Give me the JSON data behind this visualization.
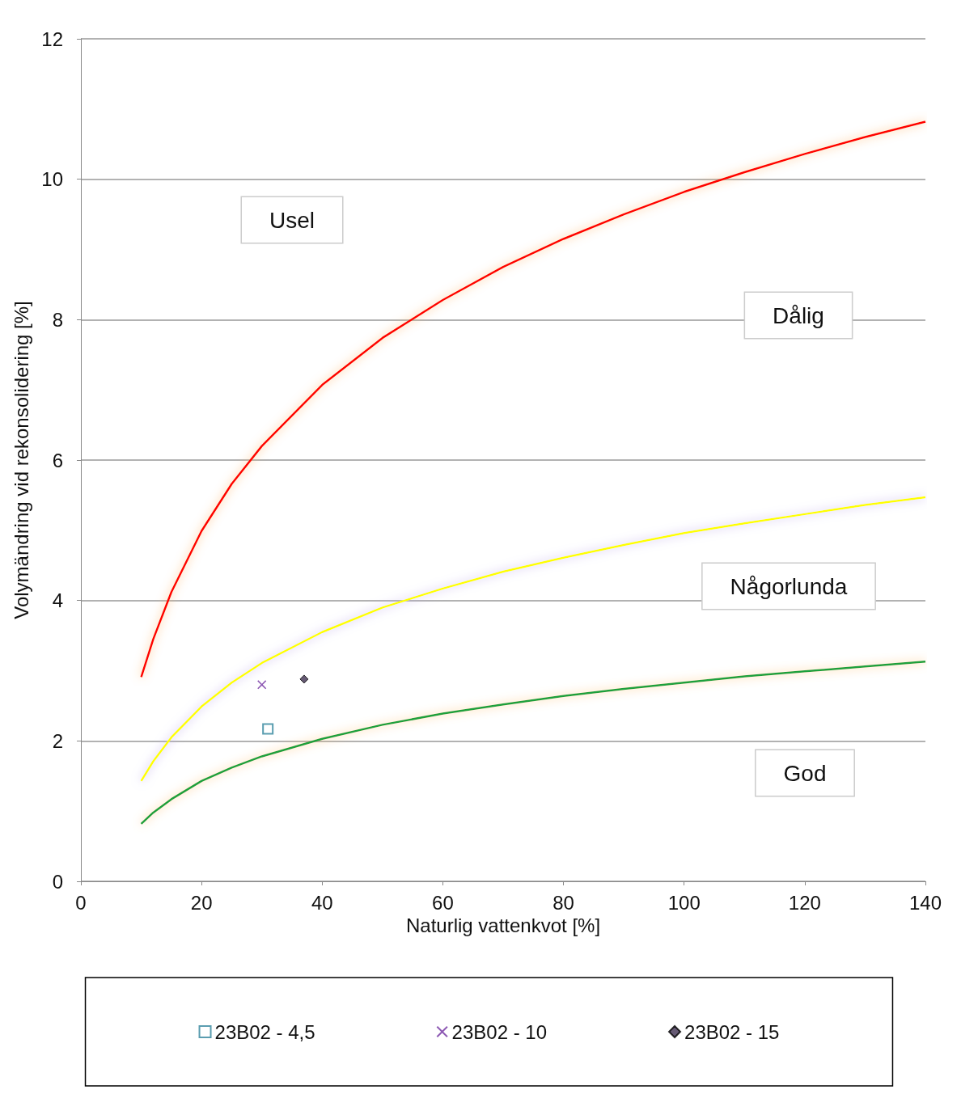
{
  "chart_data": {
    "type": "line",
    "xlabel": "Naturlig vattenkvot [%]",
    "ylabel": "Volymändring vid rekonsolidering [%]",
    "xlim": [
      0,
      140
    ],
    "xticks": [
      0,
      20,
      40,
      60,
      80,
      100,
      120,
      140
    ],
    "ylim": [
      0,
      12
    ],
    "yticks": [
      0,
      2,
      4,
      6,
      8,
      10,
      12
    ],
    "grid": "y",
    "legend": "bottom",
    "series": [
      {
        "color": "#ff0000",
        "marker": "none",
        "x": [
          10,
          12,
          15,
          20,
          25,
          30,
          40,
          50,
          60,
          70,
          80,
          90,
          100,
          110,
          120,
          130,
          140
        ],
        "values": [
          2.91,
          3.45,
          4.12,
          4.99,
          5.66,
          6.2,
          7.07,
          7.74,
          8.28,
          8.75,
          9.15,
          9.5,
          9.82,
          10.1,
          10.36,
          10.6,
          10.82
        ]
      },
      {
        "color": "#ffff00",
        "marker": "none",
        "x": [
          10,
          12,
          15,
          20,
          25,
          30,
          40,
          50,
          60,
          70,
          80,
          90,
          100,
          110,
          120,
          130,
          140
        ],
        "values": [
          1.43,
          1.71,
          2.05,
          2.49,
          2.83,
          3.11,
          3.55,
          3.9,
          4.17,
          4.41,
          4.61,
          4.79,
          4.96,
          5.1,
          5.23,
          5.36,
          5.47
        ]
      },
      {
        "color": "#1aa03c",
        "marker": "none",
        "x": [
          10,
          12,
          15,
          20,
          25,
          30,
          40,
          50,
          60,
          70,
          80,
          90,
          100,
          110,
          120,
          130,
          140
        ],
        "values": [
          0.82,
          0.98,
          1.17,
          1.43,
          1.62,
          1.78,
          2.03,
          2.23,
          2.39,
          2.52,
          2.64,
          2.74,
          2.83,
          2.92,
          2.99,
          3.06,
          3.13
        ]
      },
      {
        "type": "scatter",
        "name": "23B02 - 4,5",
        "color": "#31859c",
        "marker": "square",
        "x": [
          31
        ],
        "values": [
          2.17
        ]
      },
      {
        "type": "scatter",
        "name": "23B02 - 10",
        "color": "#7030a0",
        "marker": "cross",
        "x": [
          30
        ],
        "values": [
          2.8
        ]
      },
      {
        "type": "scatter",
        "name": "23B02 - 15",
        "color": "#403151",
        "marker": "diamond",
        "x": [
          37
        ],
        "values": [
          2.88
        ]
      }
    ],
    "annotations": [
      "Usel",
      "Dålig",
      "Någorlunda",
      "God"
    ]
  }
}
